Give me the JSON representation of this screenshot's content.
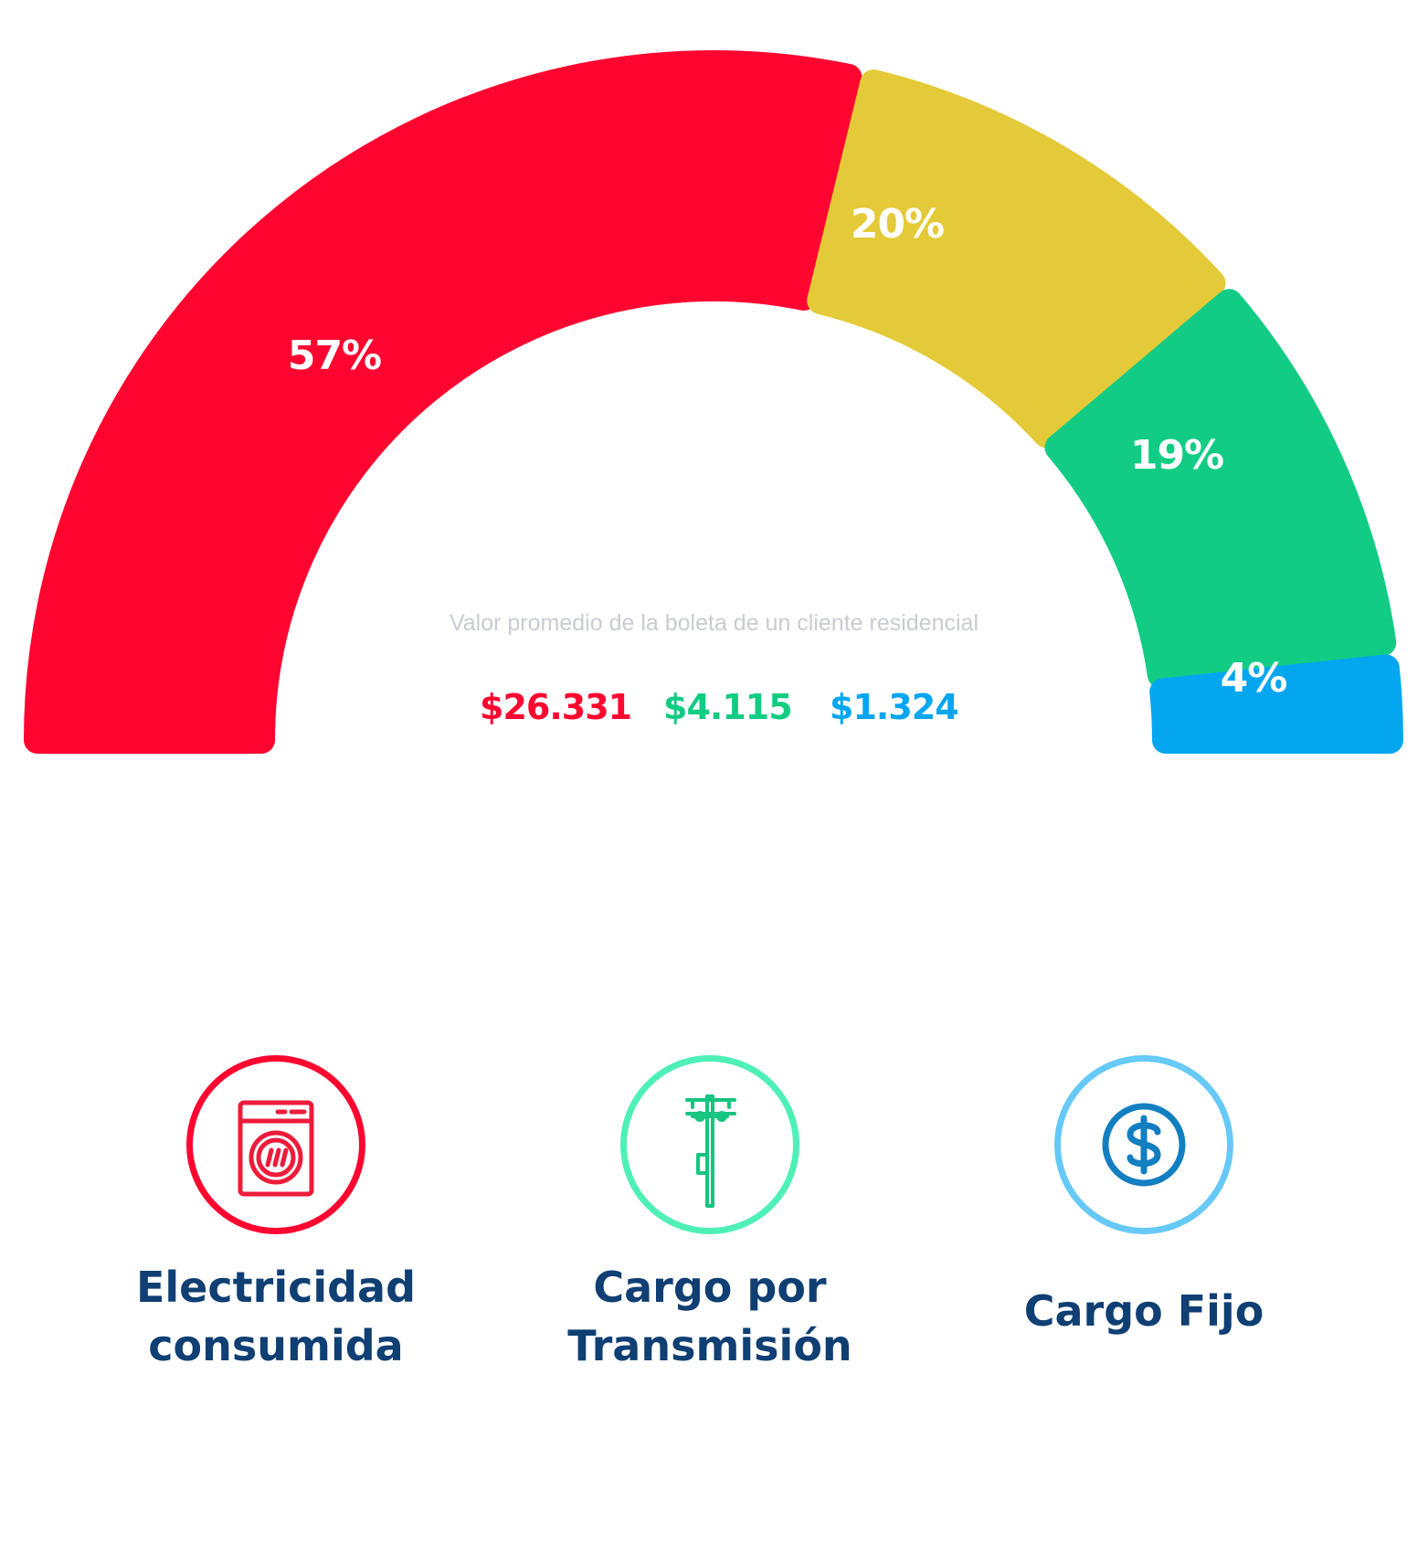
{
  "chart_data": {
    "type": "gauge",
    "segments": [
      {
        "label": "57%",
        "value": 57,
        "color": "#ff0530"
      },
      {
        "label": "20%",
        "value": 20,
        "color": "#e4ca38"
      },
      {
        "label": "19%",
        "value": 19,
        "color": "#12cc84"
      },
      {
        "label": "4%",
        "value": 4,
        "color": "#05a6f0"
      }
    ],
    "subtitle": "Valor promedio de la boleta de un cliente residencial",
    "amounts": [
      {
        "value": "$26.331",
        "color": "#ff0530"
      },
      {
        "value": "$4.115",
        "color": "#12cc84"
      },
      {
        "value": "$1.324",
        "color": "#05a6f0"
      }
    ]
  },
  "legend": [
    {
      "label": "Electricidad\nconsumida",
      "icon": "washing-machine-icon",
      "ring_color": "#ff0530",
      "icon_color": "#ee1b3a"
    },
    {
      "label": "Cargo por\nTransmisión",
      "icon": "utility-pole-icon",
      "ring_color": "#4ef0b6",
      "icon_color": "#16c57f"
    },
    {
      "label": "Cargo Fijo",
      "icon": "dollar-coin-icon",
      "ring_color": "#66c9f7",
      "icon_color": "#127fc0"
    }
  ]
}
